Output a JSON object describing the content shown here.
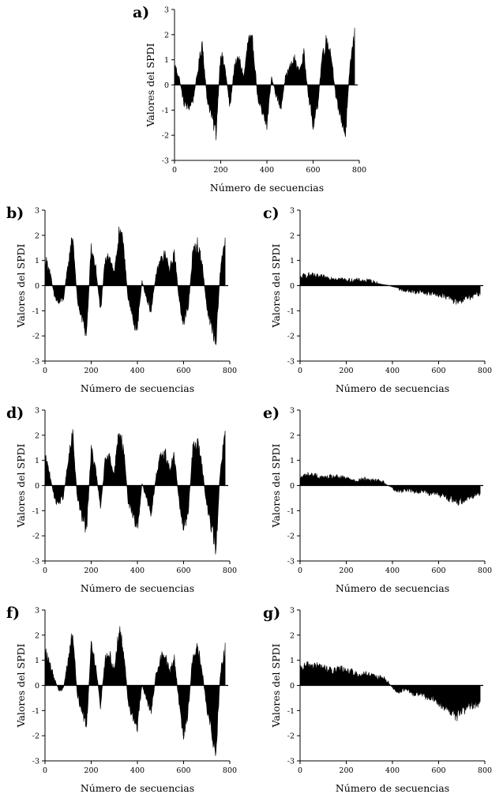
{
  "chart_data": [
    {
      "type": "area",
      "panel_label": "a)",
      "xlabel": "Número de secuencias",
      "ylabel": "Valores del SPDI",
      "xlim": [
        0,
        800
      ],
      "ylim": [
        -3,
        3
      ],
      "xticks": [
        "0",
        "200",
        "400",
        "600",
        "800"
      ],
      "yticks": [
        "-3",
        "-2",
        "-1",
        "0",
        "1",
        "2",
        "3"
      ],
      "x": [
        0,
        20,
        40,
        60,
        80,
        100,
        120,
        140,
        160,
        180,
        200,
        220,
        240,
        260,
        280,
        300,
        320,
        340,
        360,
        380,
        400,
        420,
        440,
        460,
        480,
        500,
        520,
        540,
        560,
        580,
        600,
        620,
        640,
        660,
        680,
        700,
        720,
        740,
        760,
        780
      ],
      "values": [
        0.8,
        0.3,
        -0.7,
        -0.9,
        -0.6,
        0.5,
        1.7,
        -0.5,
        -1.2,
        -1.9,
        1.3,
        0.6,
        -0.9,
        0.8,
        1.0,
        0.3,
        1.8,
        1.6,
        -0.5,
        -1.2,
        -1.6,
        0.3,
        -0.4,
        -0.9,
        0.3,
        0.7,
        1.0,
        0.5,
        1.2,
        -0.4,
        -1.6,
        -0.8,
        1.2,
        1.8,
        1.1,
        -0.6,
        -1.2,
        -2.0,
        0.8,
        2.0
      ]
    },
    {
      "type": "area",
      "panel_label": "b)",
      "xlabel": "Número de secuencias",
      "ylabel": "Valores del SPDI",
      "xlim": [
        0,
        800
      ],
      "ylim": [
        -3,
        3
      ],
      "xticks": [
        "0",
        "200",
        "400",
        "600",
        "800"
      ],
      "yticks": [
        "-3",
        "-2",
        "-1",
        "0",
        "1",
        "2",
        "3"
      ],
      "x": [
        0,
        20,
        40,
        60,
        80,
        100,
        120,
        140,
        160,
        180,
        200,
        220,
        240,
        260,
        280,
        300,
        320,
        340,
        360,
        380,
        400,
        420,
        440,
        460,
        480,
        500,
        520,
        540,
        560,
        580,
        600,
        620,
        640,
        660,
        680,
        700,
        720,
        740,
        760,
        780
      ],
      "values": [
        1.1,
        0.6,
        -0.4,
        -0.7,
        -0.5,
        0.8,
        2.0,
        -0.6,
        -1.3,
        -1.9,
        1.5,
        0.7,
        -1.0,
        0.9,
        1.2,
        0.5,
        2.0,
        1.7,
        -0.6,
        -1.3,
        -1.7,
        0.2,
        -0.5,
        -1.0,
        0.4,
        1.0,
        1.2,
        0.6,
        1.3,
        -0.5,
        -1.5,
        -0.9,
        1.3,
        1.6,
        0.9,
        -0.8,
        -1.5,
        -2.3,
        0.7,
        1.9
      ]
    },
    {
      "type": "area",
      "panel_label": "c)",
      "xlabel": "Número de secuencias",
      "ylabel": "Valores del SPDI",
      "xlim": [
        0,
        800
      ],
      "ylim": [
        -3,
        3
      ],
      "xticks": [
        "0",
        "200",
        "400",
        "600",
        "800"
      ],
      "yticks": [
        "-3",
        "-2",
        "-1",
        "0",
        "1",
        "2",
        "3"
      ],
      "x": [
        0,
        20,
        40,
        60,
        80,
        100,
        120,
        140,
        160,
        180,
        200,
        220,
        240,
        260,
        280,
        300,
        320,
        340,
        360,
        380,
        400,
        420,
        440,
        460,
        480,
        500,
        520,
        540,
        560,
        580,
        600,
        620,
        640,
        660,
        680,
        700,
        720,
        740,
        760,
        780
      ],
      "values": [
        0.3,
        0.4,
        0.42,
        0.38,
        0.35,
        0.33,
        0.3,
        0.3,
        0.28,
        0.25,
        0.22,
        0.2,
        0.22,
        0.2,
        0.18,
        0.2,
        0.15,
        0.1,
        0.05,
        0.02,
        -0.05,
        -0.1,
        -0.15,
        -0.2,
        -0.22,
        -0.25,
        -0.22,
        -0.28,
        -0.3,
        -0.32,
        -0.35,
        -0.4,
        -0.45,
        -0.55,
        -0.65,
        -0.55,
        -0.5,
        -0.45,
        -0.35,
        -0.3
      ]
    },
    {
      "type": "area",
      "panel_label": "d)",
      "xlabel": "Número de secuencias",
      "ylabel": "Valores del SPDI",
      "xlim": [
        0,
        800
      ],
      "ylim": [
        -3,
        3
      ],
      "xticks": [
        "0",
        "200",
        "400",
        "600",
        "800"
      ],
      "yticks": [
        "-3",
        "-2",
        "-1",
        "0",
        "1",
        "2",
        "3"
      ],
      "x": [
        0,
        20,
        40,
        60,
        80,
        100,
        120,
        140,
        160,
        180,
        200,
        220,
        240,
        260,
        280,
        300,
        320,
        340,
        360,
        380,
        400,
        420,
        440,
        460,
        480,
        500,
        520,
        540,
        560,
        580,
        600,
        620,
        640,
        660,
        680,
        700,
        720,
        740,
        760,
        780
      ],
      "values": [
        1.1,
        0.5,
        -0.5,
        -0.7,
        -0.4,
        0.9,
        2.0,
        -0.5,
        -1.2,
        -1.7,
        1.4,
        0.6,
        -0.9,
        0.9,
        1.1,
        0.5,
        2.1,
        1.5,
        -0.6,
        -1.3,
        -1.7,
        0.1,
        -0.5,
        -1.1,
        0.3,
        1.1,
        1.3,
        0.6,
        1.2,
        -0.6,
        -1.7,
        -1.0,
        1.4,
        1.7,
        0.8,
        -0.8,
        -1.6,
        -2.5,
        0.8,
        2.0
      ]
    },
    {
      "type": "area",
      "panel_label": "e)",
      "xlabel": "Número de secuencias",
      "ylabel": "Valores del SPDI",
      "xlim": [
        0,
        800
      ],
      "ylim": [
        -3,
        3
      ],
      "xticks": [
        "0",
        "200",
        "400",
        "600",
        "800"
      ],
      "yticks": [
        "-3",
        "-2",
        "-1",
        "0",
        "1",
        "2",
        "3"
      ],
      "x": [
        0,
        20,
        40,
        60,
        80,
        100,
        120,
        140,
        160,
        180,
        200,
        220,
        240,
        260,
        280,
        300,
        320,
        340,
        360,
        380,
        400,
        420,
        440,
        460,
        480,
        500,
        520,
        540,
        560,
        580,
        600,
        620,
        640,
        660,
        680,
        700,
        720,
        740,
        760,
        780
      ],
      "values": [
        0.3,
        0.4,
        0.42,
        0.4,
        0.35,
        0.3,
        0.3,
        0.35,
        0.33,
        0.3,
        0.28,
        0.25,
        0.2,
        0.22,
        0.25,
        0.22,
        0.2,
        0.18,
        0.15,
        0.0,
        -0.1,
        -0.2,
        -0.2,
        -0.15,
        -0.2,
        -0.22,
        -0.25,
        -0.2,
        -0.3,
        -0.3,
        -0.35,
        -0.4,
        -0.5,
        -0.55,
        -0.65,
        -0.6,
        -0.5,
        -0.45,
        -0.35,
        -0.3
      ]
    },
    {
      "type": "area",
      "panel_label": "f)",
      "xlabel": "Número de secuencias",
      "ylabel": "Valores del SPDI",
      "xlim": [
        0,
        800
      ],
      "ylim": [
        -3,
        3
      ],
      "xticks": [
        "0",
        "200",
        "400",
        "600",
        "800"
      ],
      "yticks": [
        "-3",
        "-2",
        "-1",
        "0",
        "1",
        "2",
        "3"
      ],
      "x": [
        0,
        20,
        40,
        60,
        80,
        100,
        120,
        140,
        160,
        180,
        200,
        220,
        240,
        260,
        280,
        300,
        320,
        340,
        360,
        380,
        400,
        420,
        440,
        460,
        480,
        500,
        520,
        540,
        560,
        580,
        600,
        620,
        640,
        660,
        680,
        700,
        720,
        740,
        760,
        780
      ],
      "values": [
        1.4,
        0.8,
        0.3,
        -0.2,
        -0.1,
        1.0,
        2.1,
        -0.4,
        -1.0,
        -1.5,
        1.5,
        0.8,
        -0.8,
        1.0,
        1.2,
        0.6,
        2.2,
        1.4,
        -0.6,
        -1.2,
        -1.6,
        0.0,
        -0.5,
        -1.1,
        0.4,
        1.1,
        1.2,
        0.5,
        1.1,
        -0.7,
        -1.9,
        -1.0,
        1.2,
        1.5,
        0.6,
        -0.9,
        -1.8,
        -2.6,
        0.6,
        1.4
      ]
    },
    {
      "type": "area",
      "panel_label": "g)",
      "xlabel": "Número de secuencias",
      "ylabel": "Valores del SPDI",
      "xlim": [
        0,
        800
      ],
      "ylim": [
        -3,
        3
      ],
      "xticks": [
        "0",
        "200",
        "400",
        "600",
        "800"
      ],
      "yticks": [
        "-3",
        "-2",
        "-1",
        "0",
        "1",
        "2",
        "3"
      ],
      "x": [
        0,
        20,
        40,
        60,
        80,
        100,
        120,
        140,
        160,
        180,
        200,
        220,
        240,
        260,
        280,
        300,
        320,
        340,
        360,
        380,
        400,
        420,
        440,
        460,
        480,
        500,
        520,
        540,
        560,
        580,
        600,
        620,
        640,
        660,
        680,
        700,
        720,
        740,
        760,
        780
      ],
      "values": [
        0.6,
        0.75,
        0.8,
        0.8,
        0.75,
        0.7,
        0.65,
        0.55,
        0.6,
        0.65,
        0.6,
        0.55,
        0.45,
        0.4,
        0.45,
        0.4,
        0.35,
        0.3,
        0.3,
        0.15,
        -0.1,
        -0.25,
        -0.2,
        -0.15,
        -0.3,
        -0.35,
        -0.3,
        -0.45,
        -0.5,
        -0.55,
        -0.7,
        -0.8,
        -0.9,
        -1.1,
        -1.2,
        -1.0,
        -0.9,
        -0.8,
        -0.75,
        -0.7
      ]
    }
  ]
}
